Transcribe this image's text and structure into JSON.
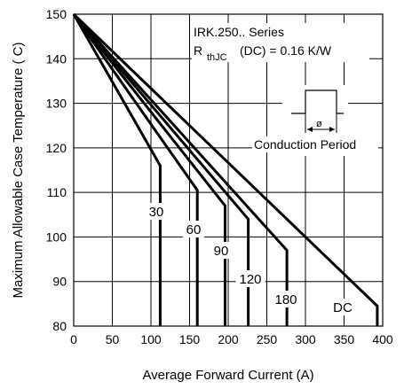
{
  "chart_data": {
    "type": "line",
    "title": "",
    "xlabel": "Average Forward Current (A)",
    "ylabel": "Maximum Allowable Case Temperature ( C)",
    "xlim": [
      0,
      400
    ],
    "ylim": [
      80,
      150
    ],
    "xticks": [
      "0",
      "50",
      "100",
      "150",
      "200",
      "250",
      "300",
      "350",
      "400"
    ],
    "yticks": [
      "80",
      "90",
      "100",
      "110",
      "120",
      "130",
      "140",
      "150"
    ],
    "grid": true,
    "series": [
      {
        "name": "30",
        "x": [
          0,
          112,
          112
        ],
        "y": [
          150,
          116,
          80
        ]
      },
      {
        "name": "60",
        "x": [
          0,
          160,
          160
        ],
        "y": [
          150,
          110.5,
          80
        ]
      },
      {
        "name": "90",
        "x": [
          0,
          196,
          196
        ],
        "y": [
          150,
          107,
          80
        ]
      },
      {
        "name": "120",
        "x": [
          0,
          226,
          226
        ],
        "y": [
          150,
          104,
          80
        ]
      },
      {
        "name": "180",
        "x": [
          0,
          276,
          276
        ],
        "y": [
          150,
          97,
          80
        ]
      },
      {
        "name": "DC",
        "x": [
          0,
          393,
          393
        ],
        "y": [
          150,
          84.5,
          80
        ]
      }
    ],
    "annotations": {
      "series_title": "IRK.250.. Series",
      "rth_prefix": "R",
      "rth_sub": "thJC",
      "rth_suffix": "(DC) = 0.16 K/W",
      "phi": "ø",
      "conduction_label": "Conduction Period"
    }
  }
}
